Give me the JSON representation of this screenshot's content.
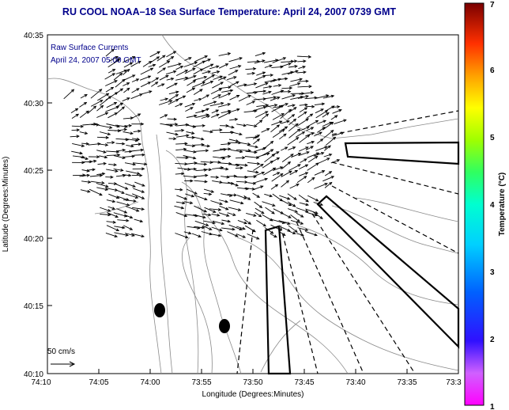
{
  "title": "RU COOL  NOAA–18  Sea Surface Temperature:  April 24, 2007 0739 GMT",
  "legend": {
    "line1": "Raw Surface Currents",
    "line2": "April 24, 2007 05:00 GMT"
  },
  "axes": {
    "xlabel": "Longitude (Degrees:Minutes)",
    "ylabel": "Latitude (Degrees:Minutes)",
    "x_ticks": [
      "74:10",
      "74:05",
      "74:00",
      "73:55",
      "73:50",
      "73:45",
      "73:40",
      "73:35",
      "73:3"
    ],
    "y_ticks": [
      "40:35",
      "40:30",
      "40:25",
      "40:20",
      "40:15",
      "40:10"
    ]
  },
  "scale_label": "50 cm/s",
  "colorbar": {
    "label": "Temperature (°C)",
    "ticks": [
      "1",
      "2",
      "3",
      "4",
      "5",
      "6",
      "7"
    ],
    "min": 1,
    "max": 7
  },
  "colors": {
    "title": "#00008b",
    "legend": "#00008b",
    "arrows": "#000000",
    "contours": "#808080"
  }
}
